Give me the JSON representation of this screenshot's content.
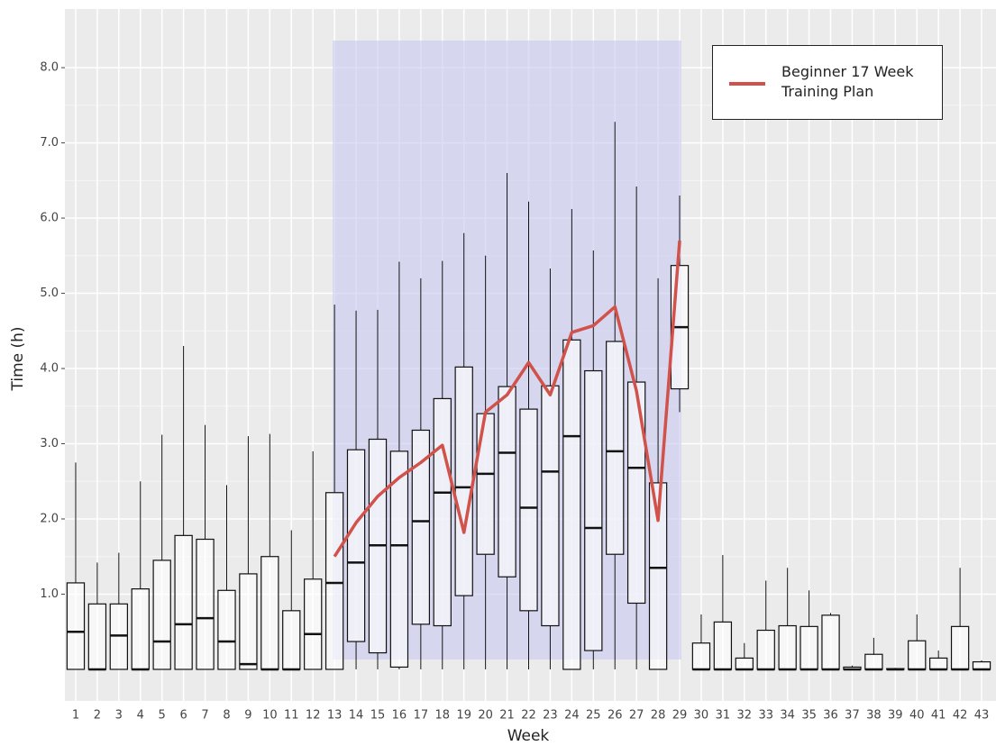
{
  "chart_data": {
    "type": "box",
    "x_label": "Week",
    "y_label": "Time (h)",
    "categories": [
      "1",
      "2",
      "3",
      "4",
      "5",
      "6",
      "7",
      "8",
      "9",
      "10",
      "11",
      "12",
      "13",
      "14",
      "15",
      "16",
      "17",
      "18",
      "19",
      "20",
      "21",
      "22",
      "23",
      "24",
      "25",
      "26",
      "27",
      "28",
      "29",
      "30",
      "31",
      "32",
      "33",
      "34",
      "35",
      "36",
      "37",
      "38",
      "39",
      "40",
      "41",
      "42",
      "43"
    ],
    "whisker_low": [
      0,
      0,
      0,
      0,
      0,
      0,
      0,
      0,
      0,
      0,
      0,
      0,
      0,
      0,
      0,
      0,
      0,
      0,
      0,
      0,
      0,
      0,
      0,
      0,
      0,
      0,
      0,
      0,
      3.42,
      0,
      0,
      0,
      0,
      0,
      0,
      0,
      0,
      0,
      0,
      0,
      0,
      0,
      0
    ],
    "q1": [
      0,
      0,
      0,
      0,
      0,
      0,
      0,
      0,
      0,
      0,
      0,
      0,
      0,
      0.37,
      0.22,
      0.03,
      0.6,
      0.58,
      0.98,
      1.53,
      1.23,
      0.78,
      0.58,
      0,
      0.25,
      1.53,
      0.88,
      0,
      3.73,
      0,
      0,
      0,
      0,
      0,
      0,
      0,
      0,
      0,
      0,
      0,
      0,
      0,
      0
    ],
    "median": [
      0.5,
      0,
      0.45,
      0,
      0.37,
      0.6,
      0.68,
      0.37,
      0.07,
      0,
      0,
      0.47,
      1.15,
      1.42,
      1.65,
      1.65,
      1.97,
      2.35,
      2.42,
      2.6,
      2.88,
      2.15,
      2.63,
      3.1,
      1.88,
      2.9,
      2.68,
      1.35,
      4.55,
      0,
      0,
      0,
      0,
      0,
      0,
      0,
      0,
      0,
      0,
      0,
      0,
      0,
      0
    ],
    "q3": [
      1.15,
      0.87,
      0.87,
      1.07,
      1.45,
      1.78,
      1.73,
      1.05,
      1.27,
      1.5,
      0.78,
      1.2,
      2.35,
      2.92,
      3.06,
      2.9,
      3.18,
      3.6,
      4.02,
      3.4,
      3.76,
      3.46,
      3.77,
      4.38,
      3.97,
      4.36,
      3.82,
      2.48,
      5.37,
      0.35,
      0.63,
      0.15,
      0.52,
      0.58,
      0.57,
      0.72,
      0.03,
      0.2,
      0.01,
      0.38,
      0.15,
      0.57,
      0.1
    ],
    "whisker_high": [
      2.75,
      1.42,
      1.55,
      2.5,
      3.12,
      4.3,
      3.25,
      2.45,
      3.1,
      3.13,
      1.85,
      2.9,
      4.85,
      4.77,
      4.78,
      5.42,
      5.2,
      5.43,
      5.8,
      5.5,
      6.6,
      6.22,
      5.33,
      6.12,
      5.57,
      7.28,
      6.42,
      5.2,
      6.3,
      0.73,
      1.52,
      0.35,
      1.18,
      1.35,
      1.05,
      0.75,
      0.05,
      0.42,
      0.02,
      0.73,
      0.25,
      1.35,
      0.12
    ],
    "box_fill": "#ffffff",
    "highlight": {
      "from": "13",
      "to": "29",
      "color": "#c8c8f0"
    },
    "series": [
      {
        "name": "Beginner 17 Week Training Plan",
        "color": "#d0524a",
        "values": [
          null,
          null,
          null,
          null,
          null,
          null,
          null,
          null,
          null,
          null,
          null,
          null,
          1.5,
          1.95,
          2.3,
          2.55,
          2.75,
          2.98,
          1.82,
          3.42,
          3.65,
          4.08,
          3.65,
          4.48,
          4.57,
          4.82,
          3.7,
          1.98,
          5.7,
          null,
          null,
          null,
          null,
          null,
          null,
          null,
          null,
          null,
          null,
          null,
          null,
          null,
          null
        ]
      }
    ],
    "ylim": [
      -0.42,
      8.78
    ],
    "yticks": [
      {
        "value": 1,
        "label": "1.0"
      },
      {
        "value": 2,
        "label": "2.0"
      },
      {
        "value": 3,
        "label": "3.0"
      },
      {
        "value": 4,
        "label": "4.0"
      },
      {
        "value": 5,
        "label": "5.0"
      },
      {
        "value": 6,
        "label": "6.0"
      },
      {
        "value": 7,
        "label": "7.0"
      },
      {
        "value": 8,
        "label": "8.0"
      }
    ],
    "grid": true,
    "legend": "top-right"
  }
}
